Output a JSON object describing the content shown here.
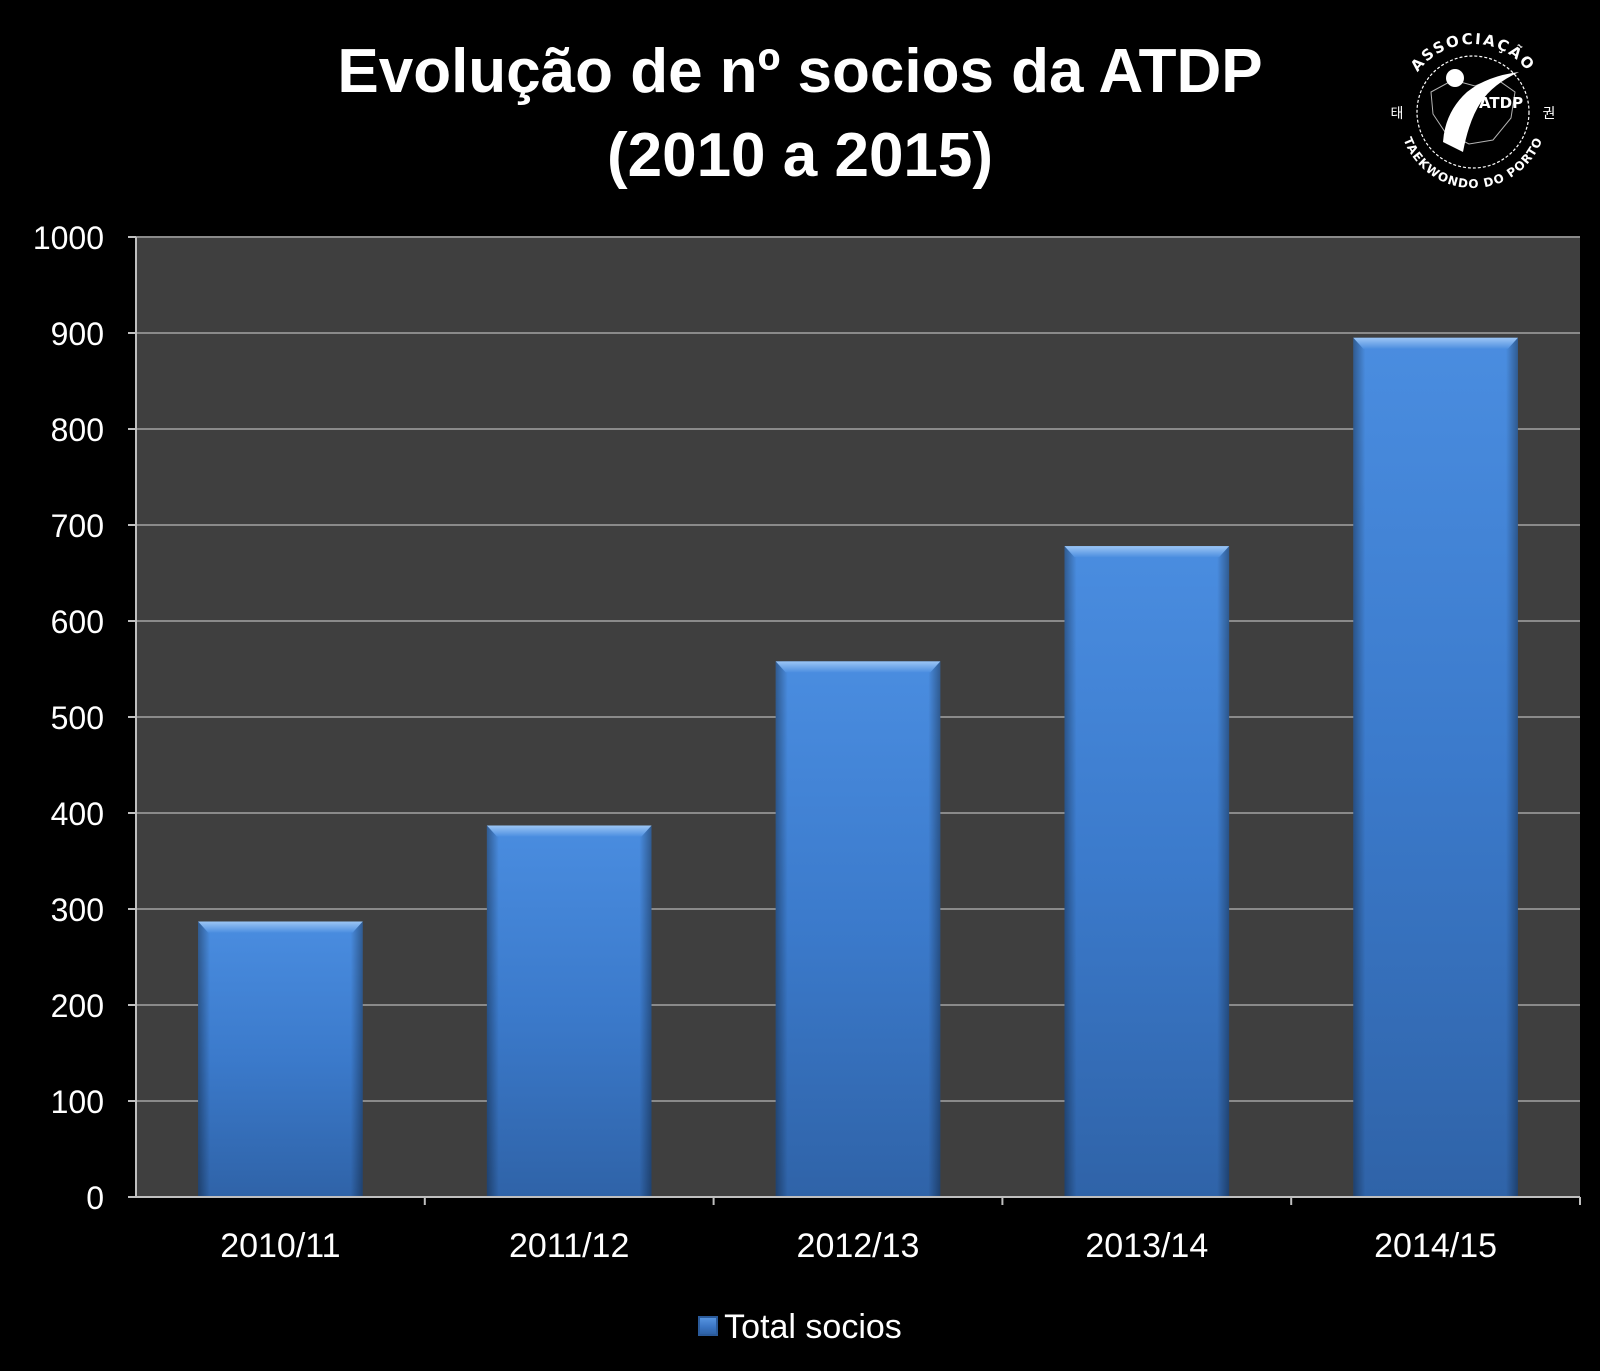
{
  "colors": {
    "background": "#000000",
    "plot_area": "#3f3f3f",
    "gridline": "#8a8a8a",
    "bar": "#3f7fd0",
    "text": "#ffffff"
  },
  "title": {
    "line1": "Evolução de nº socios da ATDP",
    "line2": "(2010 a 2015)"
  },
  "logo": {
    "top_text": "ASSOCIAÇÃO",
    "bottom_text": "TAEKWONDO DO PORTO",
    "center_text": "ATDP",
    "left_glyph": "태",
    "right_glyph": "권"
  },
  "legend": {
    "label": "Total socios",
    "position": "bottom"
  },
  "chart_data": {
    "type": "bar",
    "title": "Evolução de nº socios da ATDP (2010 a 2015)",
    "xlabel": "",
    "ylabel": "",
    "categories": [
      "2010/11",
      "2011/12",
      "2012/13",
      "2013/14",
      "2014/15"
    ],
    "series": [
      {
        "name": "Total socios",
        "values": [
          287,
          387,
          558,
          678,
          895
        ]
      }
    ],
    "ylim": [
      0,
      1000
    ],
    "yticks": [
      0,
      100,
      200,
      300,
      400,
      500,
      600,
      700,
      800,
      900,
      1000
    ],
    "grid": true,
    "legend": "bottom"
  }
}
